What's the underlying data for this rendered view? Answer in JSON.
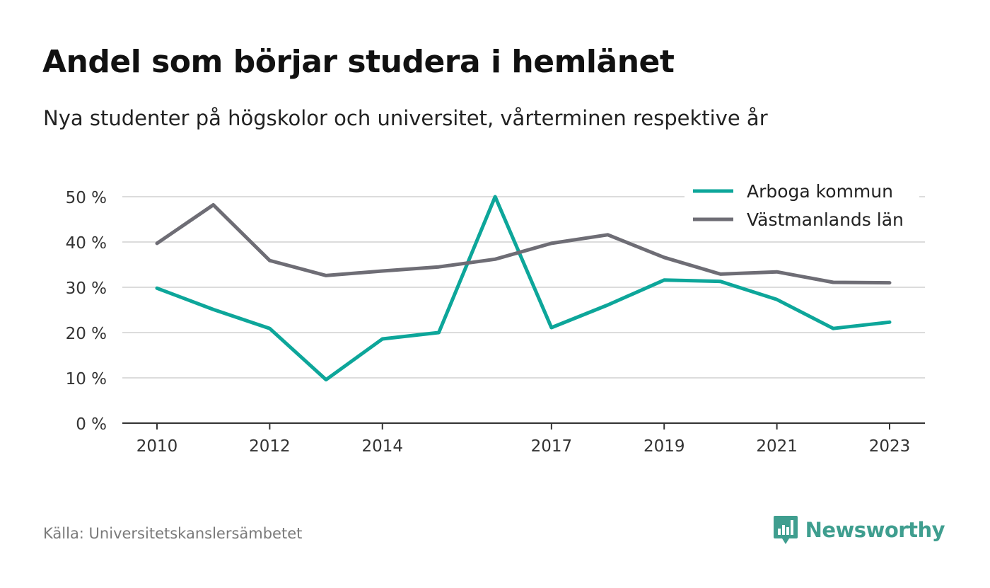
{
  "header": {
    "title": "Andel som börjar studera i hemlänet",
    "subtitle": "Nya studenter på högskolor och universitet, vårterminen respektive år"
  },
  "footer": {
    "source": "Källa: Universitetskanslersämbetet",
    "brand": "Newsworthy",
    "brand_icon": "bar-chart-speech-bubble-icon"
  },
  "colors": {
    "arboga": "#0da69a",
    "vastmanland": "#6e6d75",
    "grid": "#dcdcdc",
    "axis": "#333333",
    "brand": "#3f9e8f"
  },
  "chart_data": {
    "type": "line",
    "title": "Andel som börjar studera i hemlänet",
    "subtitle": "Nya studenter på högskolor och universitet, vårterminen respektive år",
    "x": [
      2010,
      2011,
      2012,
      2013,
      2014,
      2015,
      2016,
      2017,
      2018,
      2019,
      2020,
      2021,
      2022,
      2023
    ],
    "x_tick_labels": [
      "2010",
      "2012",
      "2014",
      "2017",
      "2019",
      "2021",
      "2023"
    ],
    "x_tick_values": [
      2010,
      2012,
      2014,
      2017,
      2019,
      2021,
      2023
    ],
    "y_tick_labels": [
      "0 %",
      "10 %",
      "20 %",
      "30 %",
      "40 %",
      "50 %"
    ],
    "y_tick_values": [
      0,
      10,
      20,
      30,
      40,
      50
    ],
    "ylim": [
      0,
      50
    ],
    "xlim": [
      2010,
      2023
    ],
    "grid": true,
    "legend_position": "top-right",
    "series": [
      {
        "name": "Arboga kommun",
        "color": "#0da69a",
        "values": [
          29.8,
          25.1,
          20.9,
          9.6,
          18.6,
          20.0,
          50.0,
          21.1,
          26.1,
          31.6,
          31.3,
          27.3,
          20.9,
          22.3
        ]
      },
      {
        "name": "Västmanlands län",
        "color": "#6e6d75",
        "values": [
          39.7,
          48.2,
          35.9,
          32.6,
          33.6,
          34.5,
          36.2,
          39.7,
          41.6,
          36.6,
          32.9,
          33.4,
          31.1,
          31.0
        ]
      }
    ]
  }
}
